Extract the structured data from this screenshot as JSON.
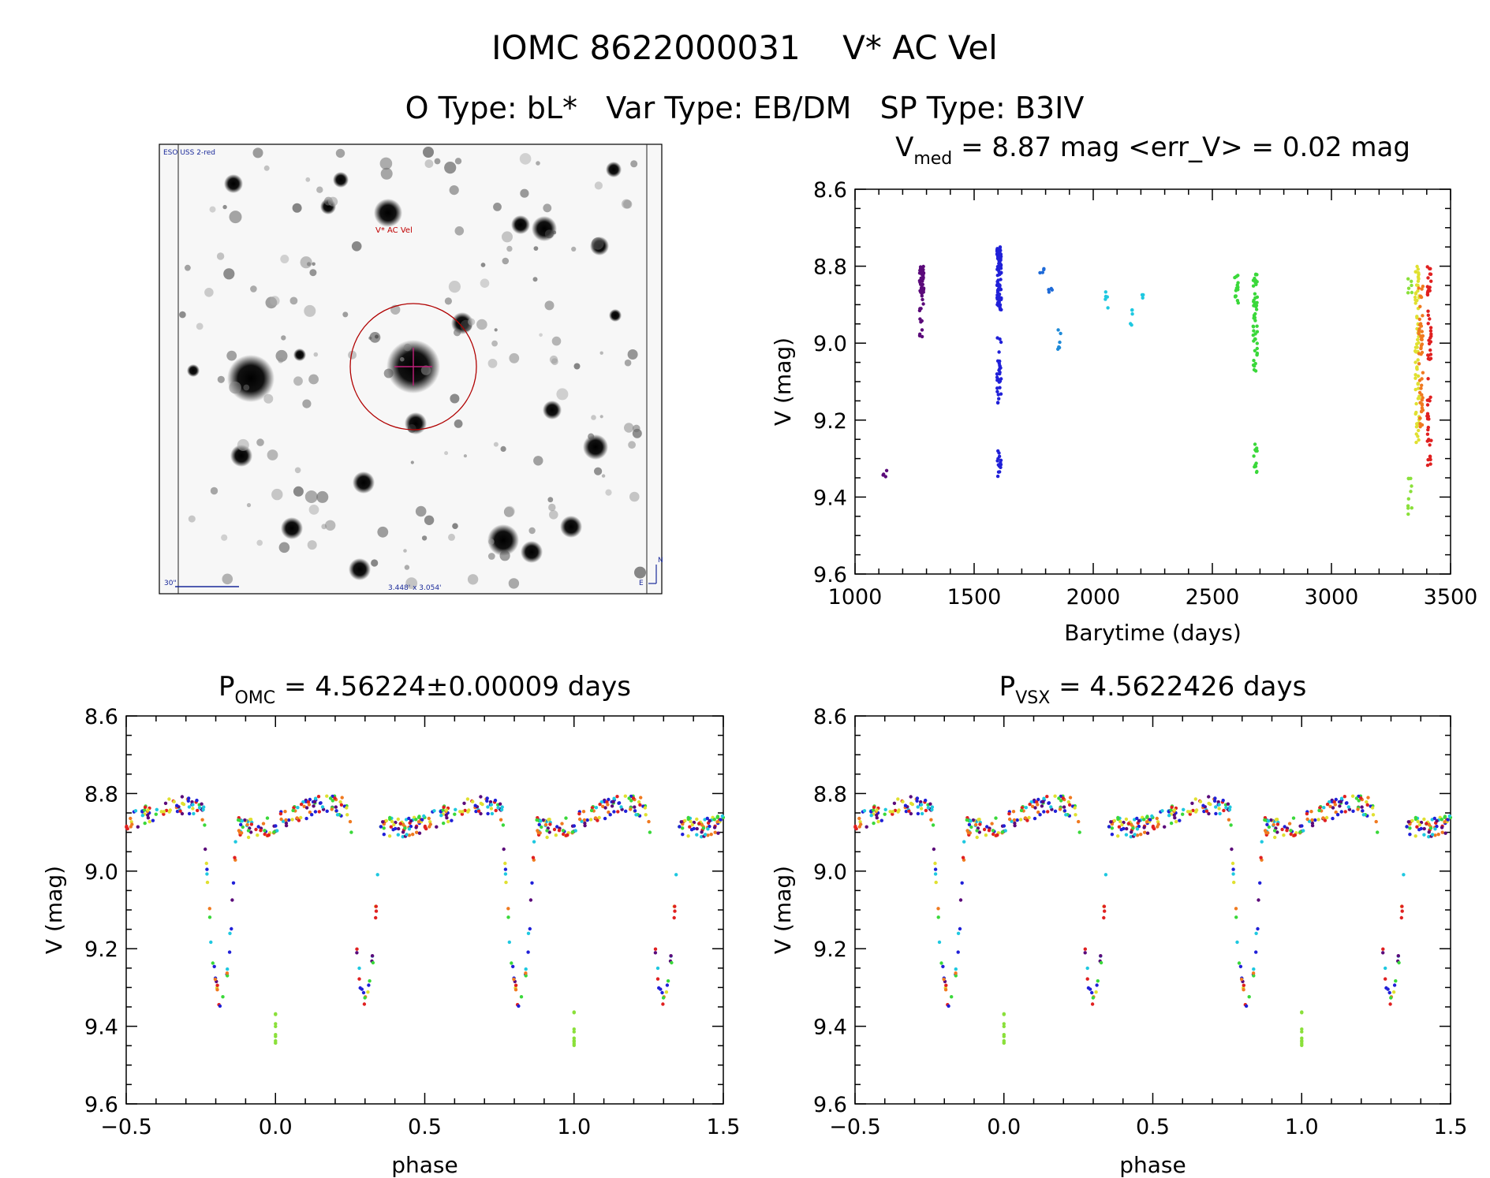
{
  "header": {
    "title": "IOMC 8622000031    V* AC Vel",
    "subtitle": "O Type: bL*   Var Type: EB/DM   SP Type: B3IV"
  },
  "image_panel": {
    "survey_label": "ESO USS 2-red",
    "target_label": "V* AC Vel",
    "scale_label": "30\"",
    "size_label": "3.448' x 3.054'",
    "compass_n": "N",
    "compass_e": "E"
  },
  "chart_data": [
    {
      "id": "lightcurve",
      "type": "scatter",
      "title": "V_med = 8.87 mag <err_V> = 0.02 mag",
      "title_parts": {
        "main": "V",
        "sub": "med",
        "rest": " = 8.87 mag <err_V> = 0.02 mag"
      },
      "xlabel": "Barytime (days)",
      "ylabel": "V (mag)",
      "xlim": [
        1000,
        3500
      ],
      "ylim": [
        9.6,
        8.6
      ],
      "xticks": [
        "1000",
        "1500",
        "2000",
        "2500",
        "3000",
        "3500"
      ],
      "yticks": [
        "8.6",
        "8.8",
        "9.0",
        "9.2",
        "9.4",
        "9.6"
      ],
      "clusters": [
        {
          "x": 1125,
          "ymin": 9.33,
          "ymax": 9.35,
          "n": 4,
          "color": "#5b0a7a"
        },
        {
          "x": 1280,
          "ymin": 8.8,
          "ymax": 8.88,
          "n": 40,
          "color": "#5b0a7a"
        },
        {
          "x": 1280,
          "ymin": 8.88,
          "ymax": 8.99,
          "n": 12,
          "color": "#5b0a7a"
        },
        {
          "x": 1605,
          "ymin": 8.75,
          "ymax": 8.92,
          "n": 90,
          "color": "#2020d8"
        },
        {
          "x": 1605,
          "ymin": 8.98,
          "ymax": 9.16,
          "n": 30,
          "color": "#2020d8"
        },
        {
          "x": 1605,
          "ymin": 9.28,
          "ymax": 9.35,
          "n": 14,
          "color": "#2020d8"
        },
        {
          "x": 1785,
          "ymin": 8.8,
          "ymax": 8.82,
          "n": 4,
          "color": "#1e6ad8"
        },
        {
          "x": 1820,
          "ymin": 8.85,
          "ymax": 8.87,
          "n": 4,
          "color": "#1e6ad8"
        },
        {
          "x": 1860,
          "ymin": 8.96,
          "ymax": 9.02,
          "n": 6,
          "color": "#1e8ad8"
        },
        {
          "x": 2060,
          "ymin": 8.86,
          "ymax": 8.91,
          "n": 5,
          "color": "#1ec8e0"
        },
        {
          "x": 2160,
          "ymin": 8.91,
          "ymax": 8.96,
          "n": 5,
          "color": "#1ec8e0"
        },
        {
          "x": 2210,
          "ymin": 8.87,
          "ymax": 8.89,
          "n": 3,
          "color": "#1ec8e0"
        },
        {
          "x": 2600,
          "ymin": 8.82,
          "ymax": 8.9,
          "n": 14,
          "color": "#3ad83a"
        },
        {
          "x": 2680,
          "ymin": 8.82,
          "ymax": 9.08,
          "n": 50,
          "color": "#3ad83a"
        },
        {
          "x": 2680,
          "ymin": 9.26,
          "ymax": 9.34,
          "n": 12,
          "color": "#3ad83a"
        },
        {
          "x": 3330,
          "ymin": 8.83,
          "ymax": 8.88,
          "n": 6,
          "color": "#8ae03a"
        },
        {
          "x": 3330,
          "ymin": 9.35,
          "ymax": 9.45,
          "n": 10,
          "color": "#8ae03a"
        },
        {
          "x": 3360,
          "ymin": 8.8,
          "ymax": 9.26,
          "n": 70,
          "color": "#e0e030"
        },
        {
          "x": 3375,
          "ymin": 8.85,
          "ymax": 9.25,
          "n": 50,
          "color": "#f07a20"
        },
        {
          "x": 3410,
          "ymin": 8.8,
          "ymax": 9.32,
          "n": 60,
          "color": "#e02020"
        }
      ]
    },
    {
      "id": "phase_omc",
      "type": "scatter",
      "title": "P_OMC = 4.56224±0.00009 days",
      "title_parts": {
        "main": "P",
        "sub": "OMC",
        "rest": " = 4.56224±0.00009 days"
      },
      "xlabel": "phase",
      "ylabel": "V (mag)",
      "xlim": [
        -0.5,
        1.5
      ],
      "ylim": [
        9.6,
        8.6
      ],
      "xticks": [
        "−0.5",
        "0.0",
        "0.5",
        "1.0",
        "1.5"
      ],
      "yticks": [
        "8.6",
        "8.8",
        "9.0",
        "9.2",
        "9.4",
        "9.6"
      ]
    },
    {
      "id": "phase_vsx",
      "type": "scatter",
      "title": "P_VSX = 4.5622426 days",
      "title_parts": {
        "main": "P",
        "sub": "VSX",
        "rest": " = 4.5622426 days"
      },
      "xlabel": "phase",
      "ylabel": "V (mag)",
      "xlim": [
        -0.5,
        1.5
      ],
      "ylim": [
        9.6,
        8.6
      ],
      "xticks": [
        "−0.5",
        "0.0",
        "0.5",
        "1.0",
        "1.5"
      ],
      "yticks": [
        "8.6",
        "8.8",
        "9.0",
        "9.2",
        "9.4",
        "9.6"
      ]
    }
  ],
  "phase_model": {
    "base_mag": 8.86,
    "primary_eclipse": {
      "phase": 0.815,
      "depth": 0.46,
      "width": 0.055
    },
    "secondary_eclipse": {
      "phase": 0.3,
      "depth": 0.48,
      "width": 0.05
    },
    "scatter_outlier": {
      "phase": 0.0,
      "ymin": 9.35,
      "ymax": 9.45,
      "color": "#8ae03a"
    },
    "colors": [
      "#5b0a7a",
      "#2020d8",
      "#1ec8e0",
      "#3ad83a",
      "#e0e030",
      "#f07a20",
      "#e02020"
    ]
  }
}
